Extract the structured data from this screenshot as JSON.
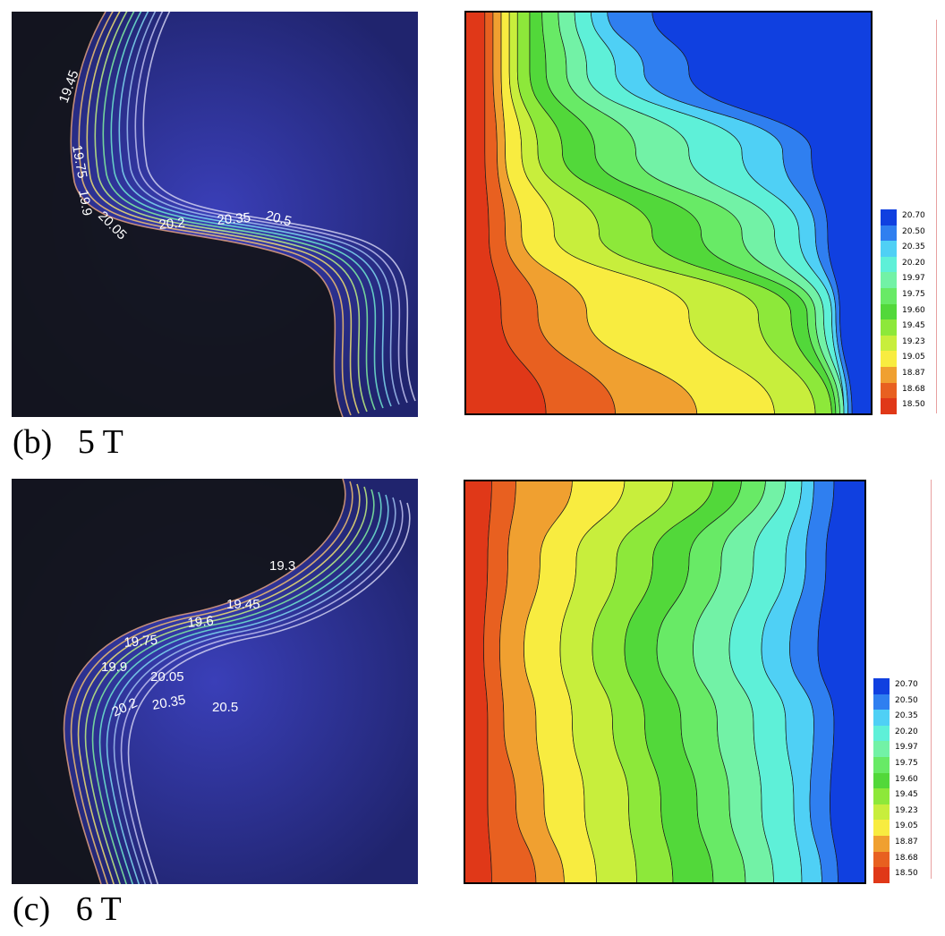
{
  "figure": {
    "rows": [
      {
        "caption_letter": "(b)",
        "caption_field": "5 T",
        "photo_labels": [
          "19.45",
          "19.75",
          "19.9",
          "20.05",
          "20.2",
          "20.35",
          "20.5"
        ],
        "legend_levels": [
          "20.70",
          "20.50",
          "20.35",
          "20.20",
          "19.97",
          "19.75",
          "19.60",
          "19.45",
          "19.23",
          "19.05",
          "18.87",
          "18.68",
          "18.50"
        ]
      },
      {
        "caption_letter": "(c)",
        "caption_field": "6 T",
        "photo_labels": [
          "19.3",
          "19.45",
          "19.6",
          "19.75",
          "19.9",
          "20.05",
          "20.2",
          "20.35",
          "20.5"
        ],
        "legend_levels": [
          "20.70",
          "20.50",
          "20.35",
          "20.20",
          "19.97",
          "19.75",
          "19.60",
          "19.45",
          "19.23",
          "19.05",
          "18.87",
          "18.68",
          "18.50"
        ]
      }
    ],
    "colors": {
      "photo_bg": "#2a2f9a",
      "photo_dark": "#121418",
      "levels": [
        "#1040e0",
        "#2f7ff0",
        "#4fd0f5",
        "#5ef0d8",
        "#72f2a6",
        "#68ea66",
        "#52d83a",
        "#8de83a",
        "#c8ee3c",
        "#f8ec40",
        "#f0a030",
        "#e86020",
        "#e03818"
      ]
    }
  },
  "chart_data": [
    {
      "type": "heatmap",
      "subtype": "filled-contour",
      "title": "",
      "field": "5 T",
      "levels": [
        18.5,
        18.68,
        18.87,
        19.05,
        19.23,
        19.45,
        19.6,
        19.75,
        19.97,
        20.2,
        20.35,
        20.5,
        20.7
      ],
      "legend_placement": "right",
      "grid": false
    },
    {
      "type": "heatmap",
      "subtype": "filled-contour",
      "title": "",
      "field": "6 T",
      "levels": [
        18.5,
        18.68,
        18.87,
        19.05,
        19.23,
        19.45,
        19.6,
        19.75,
        19.97,
        20.2,
        20.35,
        20.5,
        20.7
      ],
      "legend_placement": "right",
      "grid": false
    }
  ]
}
